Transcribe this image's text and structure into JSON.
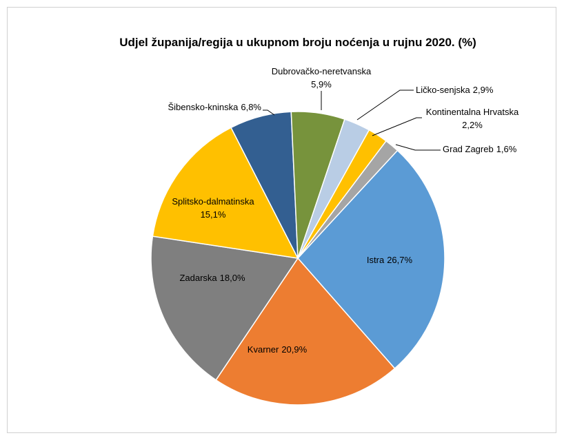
{
  "chart_data": {
    "type": "pie",
    "title": "Udjel županija/regija u ukupnom broju noćenja u rujnu 2020. (%)",
    "categories": [
      "Istra",
      "Kvarner",
      "Zadarska",
      "Splitsko-dalmatinska",
      "Šibensko-kninska",
      "Dubrovačko-neretvanska",
      "Ličko-senjska",
      "Kontinentalna Hrvatska",
      "Grad Zagreb"
    ],
    "values": [
      26.7,
      20.9,
      18.0,
      15.1,
      6.8,
      5.9,
      2.9,
      2.2,
      1.6
    ],
    "value_labels": [
      "26,7%",
      "20,9%",
      "18,0%",
      "15,1%",
      "6,8%",
      "5,9%",
      "2,9%",
      "2,2%",
      "1,6%"
    ],
    "colors": [
      "#5b9bd5",
      "#ed7d31",
      "#7f7f7f",
      "#ffc000",
      "#335f91",
      "#77933c",
      "#b9cde5",
      "#ffc000",
      "#a5a5a5"
    ]
  }
}
